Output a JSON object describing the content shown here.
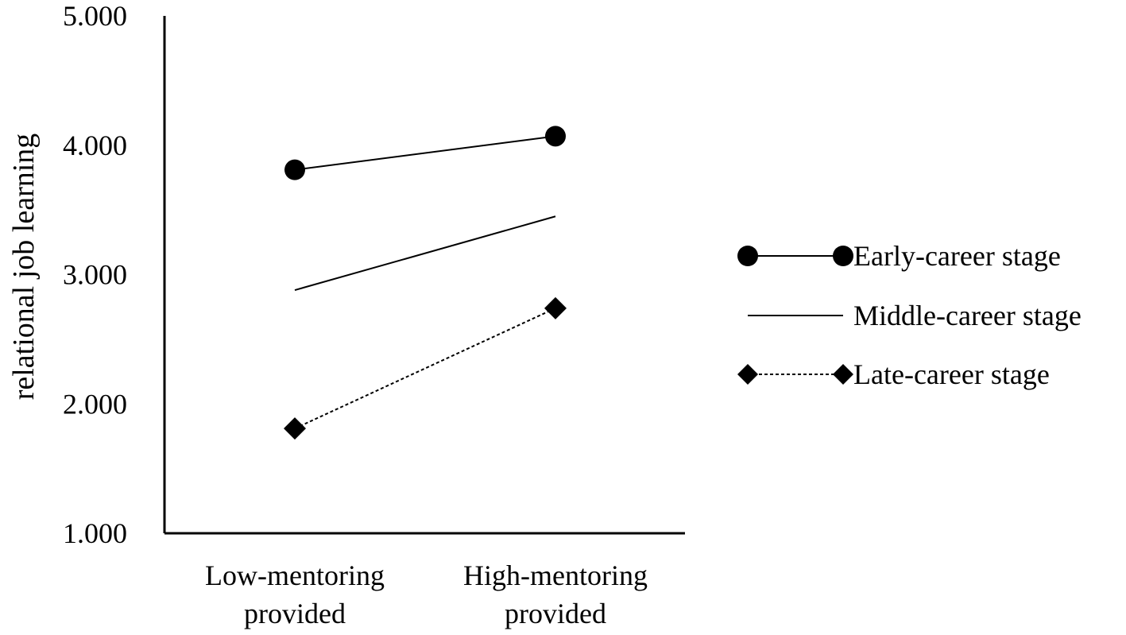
{
  "chart_data": {
    "type": "line",
    "title": "",
    "xlabel": "",
    "ylabel": "relational job learning",
    "ylim": [
      1.0,
      5.0
    ],
    "yticks": [
      "1.000",
      "2.000",
      "3.000",
      "4.000",
      "5.000"
    ],
    "ytick_values": [
      1.0,
      2.0,
      3.0,
      4.0,
      5.0
    ],
    "categories": [
      [
        "Low-mentoring",
        "provided"
      ],
      [
        "High-mentoring",
        "provided"
      ]
    ],
    "series": [
      {
        "name": "Early-career stage",
        "values": [
          3.81,
          4.07
        ],
        "marker": "circle",
        "line_style": "solid"
      },
      {
        "name": "Middle-career stage",
        "values": [
          2.88,
          3.45
        ],
        "marker": "none",
        "line_style": "solid"
      },
      {
        "name": "Late-career stage",
        "values": [
          1.81,
          2.74
        ],
        "marker": "diamond",
        "line_style": "dashed"
      }
    ],
    "legend_position": "right",
    "grid": false,
    "color": "#000000"
  }
}
